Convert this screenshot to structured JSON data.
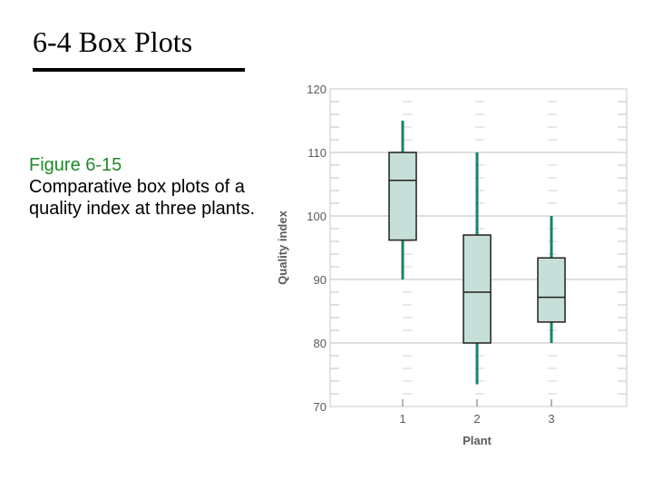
{
  "slide": {
    "title": "6-4 Box Plots",
    "figure_label": "Figure 6-15",
    "caption": "Comparative box plots of a quality index at three plants."
  },
  "chart_data": {
    "type": "box",
    "title": "",
    "xlabel": "Plant",
    "ylabel": "Quality index",
    "ylim": [
      70,
      120
    ],
    "yticks": [
      70,
      80,
      90,
      100,
      110,
      120
    ],
    "grid": true,
    "categories": [
      "1",
      "2",
      "3"
    ],
    "boxes": [
      {
        "category": "1",
        "min": 90,
        "q1": 96.2,
        "median": 105.6,
        "q3": 110,
        "max": 115
      },
      {
        "category": "2",
        "min": 73.5,
        "q1": 80,
        "median": 88,
        "q3": 97,
        "max": 110
      },
      {
        "category": "3",
        "min": 80,
        "q1": 83.3,
        "median": 87.2,
        "q3": 93.4,
        "max": 100
      }
    ],
    "colors": {
      "box_fill": "#c6dfd8",
      "box_stroke": "#1f1f1f",
      "whisker": "#16836a",
      "grid": "#d0d0d0"
    }
  }
}
